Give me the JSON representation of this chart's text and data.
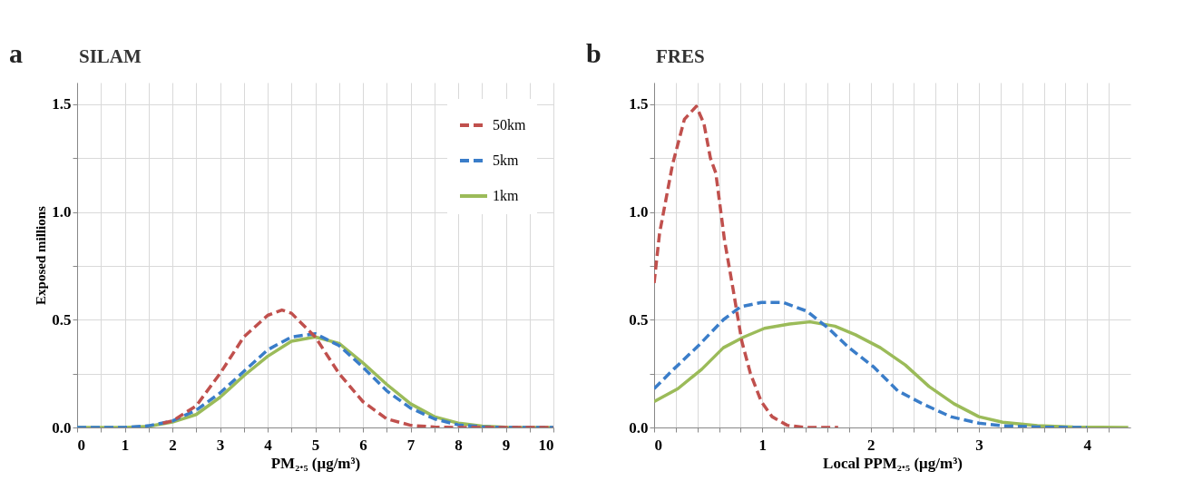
{
  "chart_data": [
    {
      "type": "line",
      "title": "SILAM",
      "annotations": [
        "a"
      ],
      "xlabel": "PM₂.₅ (μg/m³)",
      "ylabel": "Exposed  millions",
      "xlim": [
        0,
        10
      ],
      "xticks": [
        0,
        {
          "value": 0.5,
          "label": null
        },
        1,
        {
          "value": 1.5,
          "label": null
        },
        2,
        {
          "value": 2.5,
          "label": null
        },
        3,
        {
          "value": 3.5,
          "label": null
        },
        4,
        {
          "value": 4.5,
          "label": null
        },
        5,
        {
          "value": 5.5,
          "label": null
        },
        6,
        {
          "value": 6.5,
          "label": null
        },
        7,
        {
          "value": 7.5,
          "label": null
        },
        8,
        {
          "value": 8.5,
          "label": null
        },
        9,
        {
          "value": 9.5,
          "label": null
        },
        10
      ],
      "ylim": [
        0,
        1.6
      ],
      "yticks": [
        {
          "value": 0,
          "label": "0.0"
        },
        {
          "value": 0.25,
          "label": null
        },
        {
          "value": 0.5,
          "label": "0.5"
        },
        {
          "value": 0.75,
          "label": null
        },
        {
          "value": 1,
          "label": "1.0"
        },
        {
          "value": 1.25,
          "label": null
        },
        {
          "value": 1.5,
          "label": "1.5"
        }
      ],
      "grid": true,
      "legend": "top right",
      "marker": "none",
      "series": [
        {
          "name": "50km",
          "color": "#c0504d",
          "line_style": "dashed",
          "x": [
            1.8,
            2,
            2.5,
            3,
            3.5,
            4,
            4.3,
            4.5,
            5,
            5.5,
            6,
            6.5,
            7,
            7.5,
            8,
            10
          ],
          "values": [
            0.02,
            0.03,
            0.1,
            0.25,
            0.42,
            0.52,
            0.545,
            0.53,
            0.42,
            0.25,
            0.12,
            0.04,
            0.01,
            0.002,
            0,
            0
          ]
        },
        {
          "name": "5km",
          "color": "#3a7dc9",
          "line_style": "dashed",
          "x": [
            0,
            1,
            1.5,
            2,
            2.5,
            3,
            3.5,
            4,
            4.5,
            5,
            5.5,
            6,
            6.5,
            7,
            7.5,
            8,
            8.5,
            9,
            10
          ],
          "values": [
            0,
            0,
            0.008,
            0.03,
            0.08,
            0.16,
            0.26,
            0.36,
            0.42,
            0.435,
            0.38,
            0.28,
            0.17,
            0.09,
            0.04,
            0.012,
            0.003,
            0,
            0
          ]
        },
        {
          "name": "1km",
          "color": "#9bbb59",
          "line_style": "solid",
          "x": [
            0,
            1,
            1.5,
            2,
            2.5,
            3,
            3.5,
            4,
            4.5,
            5,
            5.5,
            6,
            6.5,
            7,
            7.5,
            8,
            8.5,
            9,
            10
          ],
          "values": [
            0,
            0,
            0.005,
            0.025,
            0.06,
            0.14,
            0.24,
            0.33,
            0.4,
            0.42,
            0.39,
            0.3,
            0.2,
            0.11,
            0.05,
            0.02,
            0.006,
            0.001,
            0
          ]
        }
      ]
    },
    {
      "type": "line",
      "title": "FRES",
      "annotations": [
        "b"
      ],
      "xlabel": "Local PPM₂.₅ (μg/m³)",
      "xlim": [
        0,
        4.4
      ],
      "xticks": [
        0,
        {
          "value": 0.2,
          "label": null
        },
        {
          "value": 0.4,
          "label": null
        },
        {
          "value": 0.6,
          "label": null
        },
        {
          "value": 0.8,
          "label": null
        },
        1,
        {
          "value": 1.2,
          "label": null
        },
        {
          "value": 1.4,
          "label": null
        },
        {
          "value": 1.6,
          "label": null
        },
        {
          "value": 1.8,
          "label": null
        },
        2,
        {
          "value": 2.2,
          "label": null
        },
        {
          "value": 2.4,
          "label": null
        },
        {
          "value": 2.6,
          "label": null
        },
        {
          "value": 2.8,
          "label": null
        },
        3,
        {
          "value": 3.2,
          "label": null
        },
        {
          "value": 3.4,
          "label": null
        },
        {
          "value": 3.6,
          "label": null
        },
        {
          "value": 3.8,
          "label": null
        },
        4,
        {
          "value": 4.2,
          "label": null
        }
      ],
      "ylim": [
        0,
        1.6
      ],
      "yticks": [
        {
          "value": 0,
          "label": "0.0"
        },
        {
          "value": 0.25,
          "label": null
        },
        {
          "value": 0.5,
          "label": "0.5"
        },
        {
          "value": 0.75,
          "label": null
        },
        {
          "value": 1,
          "label": "1.0"
        },
        {
          "value": 1.25,
          "label": null
        },
        {
          "value": 1.5,
          "label": "1.5"
        }
      ],
      "grid": true,
      "marker": "none",
      "series": [
        {
          "color": "#c0504d",
          "line_style": "dashed",
          "x": [
            0,
            0.05,
            0.17,
            0.28,
            0.39,
            0.46,
            0.52,
            0.57,
            0.65,
            0.73,
            0.81,
            0.89,
            0.99,
            1.09,
            1.23,
            1.4,
            1.7
          ],
          "values": [
            0.67,
            0.9,
            1.22,
            1.43,
            1.49,
            1.41,
            1.25,
            1.18,
            0.87,
            0.64,
            0.4,
            0.25,
            0.12,
            0.05,
            0.01,
            0,
            0
          ]
        },
        {
          "color": "#3a7dc9",
          "line_style": "dashed",
          "x": [
            0,
            0.18,
            0.41,
            0.64,
            0.8,
            0.99,
            1.19,
            1.41,
            1.61,
            1.8,
            2.03,
            2.25,
            2.48,
            2.74,
            3.0,
            3.22,
            3.54,
            3.87,
            4.0
          ],
          "values": [
            0.18,
            0.27,
            0.38,
            0.5,
            0.56,
            0.58,
            0.58,
            0.54,
            0.46,
            0.37,
            0.28,
            0.17,
            0.11,
            0.05,
            0.02,
            0.008,
            0.002,
            0,
            0
          ]
        },
        {
          "color": "#9bbb59",
          "line_style": "solid",
          "x": [
            0,
            0.22,
            0.44,
            0.64,
            0.83,
            1.02,
            1.25,
            1.44,
            1.67,
            1.86,
            2.09,
            2.32,
            2.54,
            2.77,
            3.0,
            3.22,
            3.54,
            3.87,
            4.38
          ],
          "values": [
            0.12,
            0.18,
            0.27,
            0.37,
            0.42,
            0.46,
            0.48,
            0.49,
            0.47,
            0.43,
            0.37,
            0.29,
            0.19,
            0.11,
            0.05,
            0.024,
            0.008,
            0.002,
            0
          ]
        }
      ]
    }
  ]
}
